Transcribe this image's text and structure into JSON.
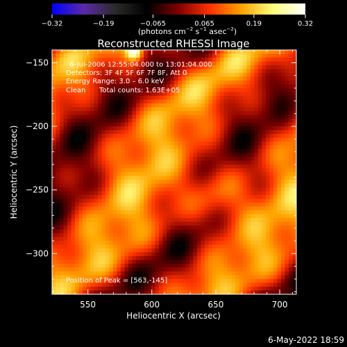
{
  "chart_data": {
    "type": "heatmap",
    "title": "Reconstructed RHESSI Image",
    "xlabel": "Heliocentric X (arcsec)",
    "ylabel": "Heliocentric Y (arcsec)",
    "xlim": [
      522,
      713
    ],
    "ylim": [
      -332,
      -140
    ],
    "x_ticks": [
      550,
      600,
      650,
      700
    ],
    "x_tick_labels": [
      "550",
      "600",
      "650",
      "700"
    ],
    "y_ticks": [
      -150,
      -200,
      -250,
      -300
    ],
    "y_tick_labels": [
      "−150",
      "−200",
      "−250",
      "−300"
    ],
    "colorbar": {
      "min": -0.32,
      "max": 0.32,
      "ticks": [
        -0.32,
        -0.19,
        -0.065,
        0.065,
        0.19,
        0.32
      ],
      "tick_labels": [
        "−0.32",
        "−0.19",
        "−0.065",
        "0.065",
        "0.19",
        "0.32"
      ],
      "units_prefix": "(photons cm",
      "units_exp1": "−2",
      "units_mid": " s",
      "units_exp2": "−1",
      "units_mid2": " asec",
      "units_exp3": "−2",
      "units_suffix": ")",
      "colormap": [
        "#0000ff",
        "#5a2aa8",
        "#2a2a2a",
        "#000000",
        "#800000",
        "#ff3300",
        "#ffa500",
        "#ffff80",
        "#ffffff"
      ]
    },
    "annotations": {
      "line1": "6-Jul-2006 12:55:04.000 to 13:01:04.000",
      "line2": "Detectors: 3F 4F 5F 6F 7F 8F, Att 0",
      "line3": "Energy Range: 3.0 – 6.0 keV",
      "line4_method": "Clean",
      "line4_counts": "Total counts: 1.63E+05",
      "peak": "Position of Peak = [563,-145]"
    },
    "peak": [
      563,
      -145
    ],
    "footer": "6-May-2022 18:59"
  }
}
